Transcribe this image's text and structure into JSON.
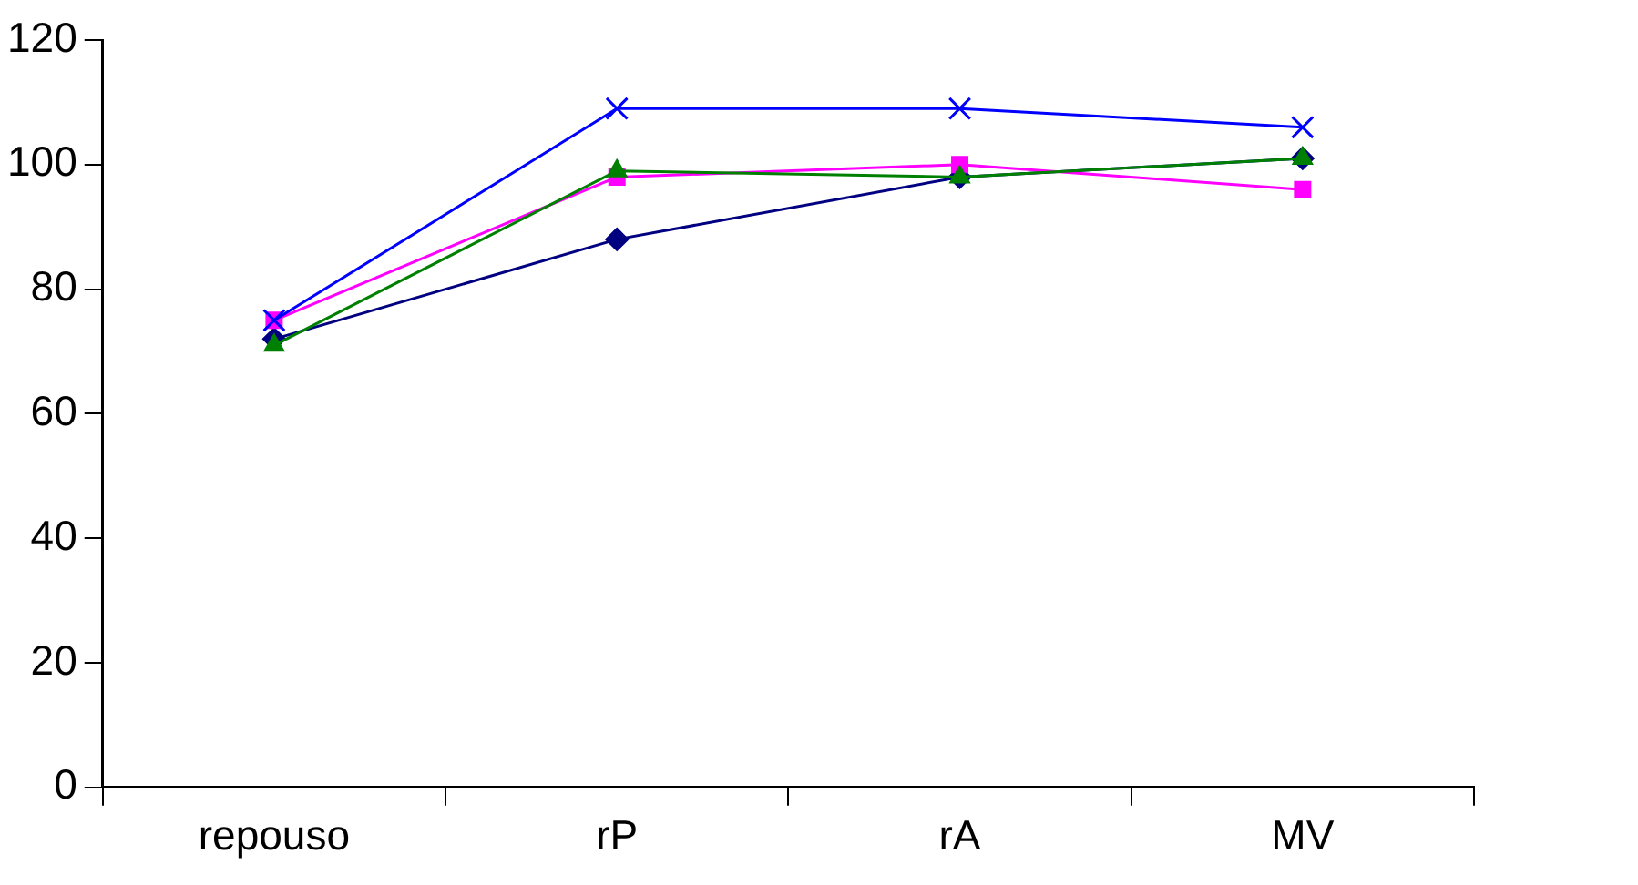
{
  "chart_data": {
    "type": "line",
    "categories": [
      "repouso",
      "rP",
      "rA",
      "MV"
    ],
    "series": [
      {
        "color": "#000080",
        "marker": "diamond",
        "values": [
          72,
          88,
          98,
          101
        ]
      },
      {
        "color": "#ff00ff",
        "marker": "square",
        "values": [
          75,
          98,
          100,
          96
        ]
      },
      {
        "color": "#0000ff",
        "marker": "cross",
        "values": [
          75,
          109,
          109,
          106
        ]
      },
      {
        "color": "#008000",
        "marker": "triangle",
        "values": [
          71,
          99,
          98,
          101
        ]
      }
    ],
    "ylim": [
      0,
      120
    ],
    "yticks": [
      0,
      20,
      40,
      60,
      80,
      100,
      120
    ],
    "grid": false,
    "legend": false
  }
}
